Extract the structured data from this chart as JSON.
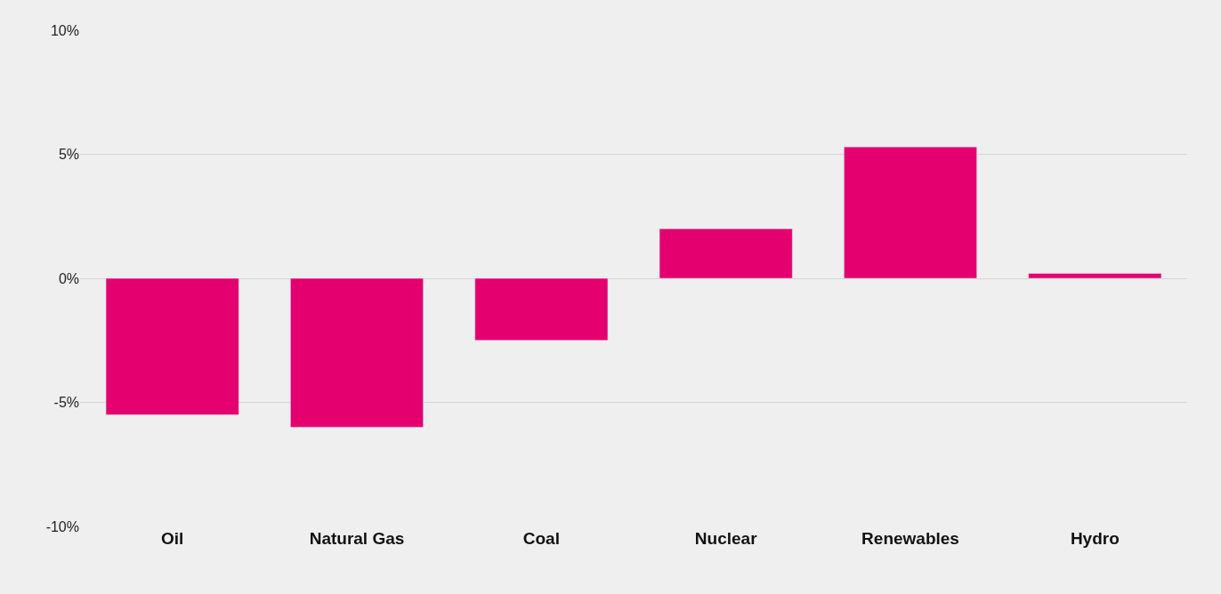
{
  "chart_data": {
    "type": "bar",
    "categories": [
      "Oil",
      "Natural Gas",
      "Coal",
      "Nuclear",
      "Renewables",
      "Hydro"
    ],
    "values": [
      -5.5,
      -6.0,
      -2.5,
      2.0,
      5.3,
      0.2
    ],
    "color": "#e4006f",
    "ylim": [
      -10,
      10
    ],
    "yticks": [
      {
        "value": -10,
        "label": "-10%"
      },
      {
        "value": -5,
        "label": "-5%"
      },
      {
        "value": 0,
        "label": "0%"
      },
      {
        "value": 5,
        "label": "5%"
      },
      {
        "value": 10,
        "label": "10%"
      }
    ],
    "grid": "y"
  }
}
